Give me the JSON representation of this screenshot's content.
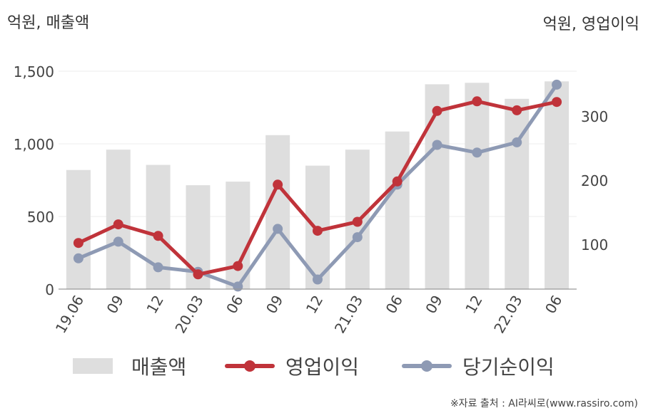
{
  "chart_data": {
    "type": "bar+line",
    "categories": [
      "19.06",
      "09",
      "12",
      "20.03",
      "06",
      "09",
      "12",
      "21.03",
      "06",
      "09",
      "12",
      "22.03",
      "06"
    ],
    "left_axis_label": "억원, 매출액",
    "right_axis_label": "억원, 영업이익",
    "left_ylim": [
      0,
      1500
    ],
    "right_ylim": [
      30,
      370
    ],
    "left_ticks": [
      "0",
      "500",
      "1,000",
      "1,500"
    ],
    "left_tick_values": [
      0,
      500,
      1000,
      1500
    ],
    "right_ticks": [
      "100",
      "200",
      "300"
    ],
    "right_tick_values": [
      100,
      200,
      300
    ],
    "grid": true,
    "legend_position": "bottom",
    "series": [
      {
        "name": "매출액",
        "kind": "bar",
        "axis": "left",
        "color": "#dedede",
        "values": [
          820,
          960,
          855,
          715,
          740,
          1060,
          850,
          960,
          1085,
          1410,
          1420,
          1310,
          1430
        ]
      },
      {
        "name": "영업이익",
        "kind": "line",
        "axis": "right",
        "color": "#c0333a",
        "values": [
          102,
          131,
          113,
          53,
          66,
          193,
          121,
          135,
          198,
          308,
          323,
          309,
          322
        ]
      },
      {
        "name": "당기순이익",
        "kind": "line",
        "axis": "right",
        "color": "#8e9ab4",
        "values": [
          78,
          104,
          64,
          57,
          34,
          124,
          45,
          111,
          193,
          255,
          243,
          259,
          349
        ]
      }
    ]
  },
  "source": "※자료 출처 : AI라씨로(www.rassiro.com)"
}
